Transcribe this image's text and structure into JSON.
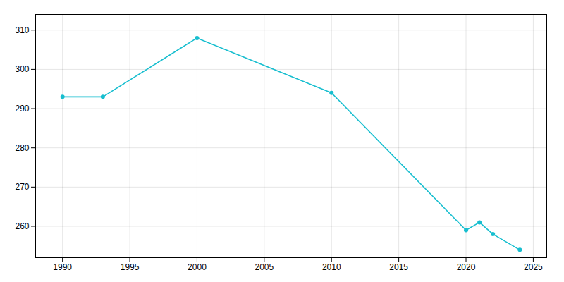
{
  "chart_data": {
    "type": "line",
    "x": [
      1990,
      1993,
      2000,
      2010,
      2020,
      2021,
      2022,
      2024
    ],
    "values": [
      293,
      293,
      308,
      294,
      259,
      261,
      258,
      254
    ],
    "color": "#17BECF",
    "marker": "circle",
    "xlim": [
      1988,
      2026
    ],
    "ylim": [
      252,
      314
    ],
    "xticks": [
      1990,
      1995,
      2000,
      2005,
      2010,
      2015,
      2020,
      2025
    ],
    "yticks": [
      260,
      270,
      280,
      290,
      300,
      310
    ],
    "grid": true
  }
}
